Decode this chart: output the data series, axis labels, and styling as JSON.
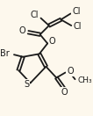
{
  "bg_color": "#fdf8ed",
  "line_color": "#1a1a1a",
  "bond_width": 1.3,
  "font_size": 7.0,
  "fig_w": 1.06,
  "fig_h": 1.32,
  "dpi": 100,
  "xlim": [
    0,
    106
  ],
  "ylim": [
    0,
    132
  ]
}
